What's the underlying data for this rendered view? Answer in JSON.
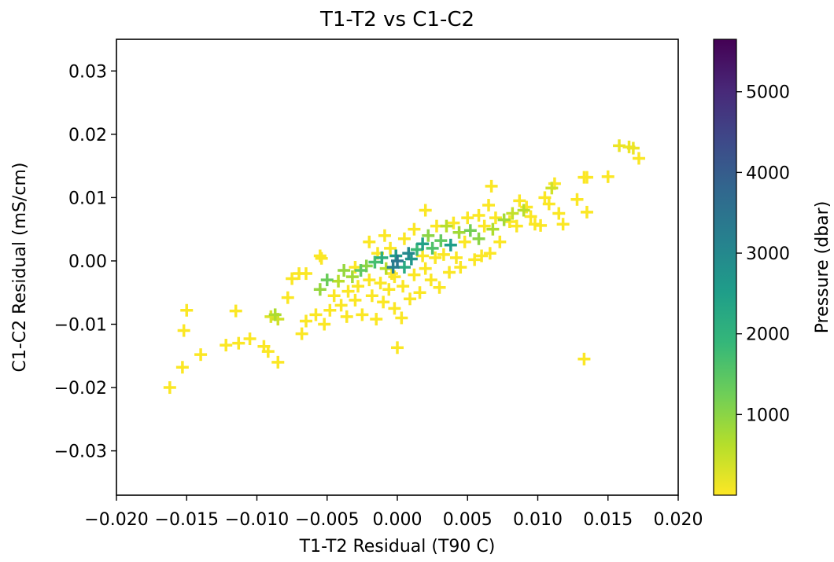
{
  "chart_data": {
    "type": "scatter",
    "title": "T1-T2 vs C1-C2",
    "xlabel": "T1-T2 Residual (T90 C)",
    "ylabel": "C1-C2 Residual (mS/cm)",
    "xlim": [
      -0.02,
      0.02
    ],
    "ylim": [
      -0.037,
      0.035
    ],
    "x_ticks": [
      -0.02,
      -0.015,
      -0.01,
      -0.005,
      0.0,
      0.005,
      0.01,
      0.015,
      0.02
    ],
    "x_tick_labels": [
      "−0.020",
      "−0.015",
      "−0.010",
      "−0.005",
      "0.000",
      "0.005",
      "0.010",
      "0.015",
      "0.020"
    ],
    "y_ticks": [
      0.03,
      0.02,
      0.01,
      0.0,
      -0.01,
      -0.02,
      -0.03
    ],
    "y_tick_labels": [
      "0.03",
      "0.02",
      "0.01",
      "0.00",
      "−0.01",
      "−0.02",
      "−0.03"
    ],
    "marker": "plus",
    "grid": false,
    "colorbar": {
      "label": "Pressure (dbar)",
      "colormap": "viridis",
      "range": [
        0,
        5650
      ],
      "reversed": true,
      "ticks": [
        1000,
        2000,
        3000,
        4000,
        5000
      ],
      "tick_labels": [
        "1000",
        "2000",
        "3000",
        "4000",
        "5000"
      ],
      "colors": [
        "#fde725",
        "#b5de2b",
        "#6ece58",
        "#35b779",
        "#1f9e89",
        "#26828e",
        "#31688e",
        "#3e4989",
        "#482878",
        "#440154"
      ]
    },
    "points": [
      {
        "x": -0.0162,
        "y": -0.02,
        "p": 20
      },
      {
        "x": -0.0153,
        "y": -0.0168,
        "p": 20
      },
      {
        "x": -0.0152,
        "y": -0.011,
        "p": 20
      },
      {
        "x": -0.015,
        "y": -0.0078,
        "p": 20
      },
      {
        "x": -0.014,
        "y": -0.0148,
        "p": 20
      },
      {
        "x": -0.0122,
        "y": -0.0133,
        "p": 20
      },
      {
        "x": -0.0113,
        "y": -0.013,
        "p": 20
      },
      {
        "x": -0.0105,
        "y": -0.0123,
        "p": 20
      },
      {
        "x": -0.0115,
        "y": -0.0079,
        "p": 20
      },
      {
        "x": -0.0095,
        "y": -0.0135,
        "p": 20
      },
      {
        "x": -0.0092,
        "y": -0.0143,
        "p": 20
      },
      {
        "x": -0.0085,
        "y": -0.016,
        "p": 20
      },
      {
        "x": -0.009,
        "y": -0.0088,
        "p": 300
      },
      {
        "x": -0.0087,
        "y": -0.0085,
        "p": 700
      },
      {
        "x": -0.0085,
        "y": -0.0092,
        "p": 400
      },
      {
        "x": -0.0078,
        "y": -0.0058,
        "p": 20
      },
      {
        "x": -0.0075,
        "y": -0.0028,
        "p": 20
      },
      {
        "x": -0.007,
        "y": -0.002,
        "p": 20
      },
      {
        "x": -0.0068,
        "y": -0.0115,
        "p": 20
      },
      {
        "x": -0.0065,
        "y": -0.0095,
        "p": 20
      },
      {
        "x": -0.0065,
        "y": -0.002,
        "p": 20
      },
      {
        "x": -0.0058,
        "y": -0.0085,
        "p": 20
      },
      {
        "x": -0.0055,
        "y": -0.0045,
        "p": 900
      },
      {
        "x": -0.0052,
        "y": -0.01,
        "p": 20
      },
      {
        "x": -0.0055,
        "y": 0.0008,
        "p": 20
      },
      {
        "x": -0.0054,
        "y": 0.0004,
        "p": 20
      },
      {
        "x": -0.005,
        "y": -0.003,
        "p": 1300
      },
      {
        "x": -0.0048,
        "y": -0.0078,
        "p": 20
      },
      {
        "x": -0.0045,
        "y": -0.0055,
        "p": 20
      },
      {
        "x": -0.0042,
        "y": -0.0032,
        "p": 600
      },
      {
        "x": -0.004,
        "y": -0.007,
        "p": 20
      },
      {
        "x": -0.0038,
        "y": -0.0015,
        "p": 900
      },
      {
        "x": -0.0036,
        "y": -0.0088,
        "p": 20
      },
      {
        "x": -0.0035,
        "y": -0.0048,
        "p": 20
      },
      {
        "x": -0.0032,
        "y": -0.0025,
        "p": 800
      },
      {
        "x": -0.003,
        "y": -0.0062,
        "p": 20
      },
      {
        "x": -0.003,
        "y": -0.001,
        "p": 20
      },
      {
        "x": -0.0028,
        "y": -0.004,
        "p": 20
      },
      {
        "x": -0.0026,
        "y": -0.0015,
        "p": 1400
      },
      {
        "x": -0.0025,
        "y": -0.0085,
        "p": 20
      },
      {
        "x": -0.0022,
        "y": -0.0008,
        "p": 1000
      },
      {
        "x": -0.002,
        "y": -0.003,
        "p": 20
      },
      {
        "x": -0.002,
        "y": 0.003,
        "p": 20
      },
      {
        "x": -0.0018,
        "y": -0.0055,
        "p": 20
      },
      {
        "x": -0.0016,
        "y": -0.0002,
        "p": 1700
      },
      {
        "x": -0.0015,
        "y": -0.0092,
        "p": 20
      },
      {
        "x": -0.0014,
        "y": 0.0012,
        "p": 20
      },
      {
        "x": -0.0012,
        "y": -0.0035,
        "p": 20
      },
      {
        "x": -0.0011,
        "y": 0.0005,
        "p": 2100
      },
      {
        "x": -0.001,
        "y": -0.0065,
        "p": 20
      },
      {
        "x": -0.0009,
        "y": 0.004,
        "p": 20
      },
      {
        "x": -0.0008,
        "y": -0.0012,
        "p": 600
      },
      {
        "x": -0.0006,
        "y": -0.0045,
        "p": 20
      },
      {
        "x": -0.0005,
        "y": 0.002,
        "p": 20
      },
      {
        "x": -0.0004,
        "y": -0.002,
        "p": 20
      },
      {
        "x": -0.0003,
        "y": -0.001,
        "p": 3200
      },
      {
        "x": -0.0002,
        "y": -0.0075,
        "p": 20
      },
      {
        "x": -0.0002,
        "y": -0.0025,
        "p": 20
      },
      {
        "x": -0.0001,
        "y": 0.0008,
        "p": 2600
      },
      {
        "x": 0.0,
        "y": -0.0137,
        "p": 20
      },
      {
        "x": 0.0,
        "y": 0.0,
        "p": 3400
      },
      {
        "x": 0.0003,
        "y": -0.009,
        "p": 20
      },
      {
        "x": 0.0004,
        "y": -0.004,
        "p": 20
      },
      {
        "x": 0.0005,
        "y": 0.0035,
        "p": 20
      },
      {
        "x": 0.0005,
        "y": -0.001,
        "p": 2200
      },
      {
        "x": 0.0008,
        "y": 0.0012,
        "p": 3000
      },
      {
        "x": 0.0009,
        "y": -0.006,
        "p": 20
      },
      {
        "x": 0.001,
        "y": 0.0003,
        "p": 2700
      },
      {
        "x": 0.0012,
        "y": -0.0022,
        "p": 20
      },
      {
        "x": 0.0012,
        "y": 0.005,
        "p": 20
      },
      {
        "x": 0.0014,
        "y": 0.0018,
        "p": 1800
      },
      {
        "x": 0.0016,
        "y": -0.005,
        "p": 20
      },
      {
        "x": 0.0018,
        "y": 0.0008,
        "p": 20
      },
      {
        "x": 0.0018,
        "y": 0.0027,
        "p": 2400
      },
      {
        "x": 0.002,
        "y": -0.0012,
        "p": 20
      },
      {
        "x": 0.002,
        "y": 0.008,
        "p": 20
      },
      {
        "x": 0.0022,
        "y": 0.004,
        "p": 1000
      },
      {
        "x": 0.0024,
        "y": -0.003,
        "p": 20
      },
      {
        "x": 0.0025,
        "y": 0.002,
        "p": 1600
      },
      {
        "x": 0.0027,
        "y": 0.0005,
        "p": 20
      },
      {
        "x": 0.0028,
        "y": 0.0055,
        "p": 20
      },
      {
        "x": 0.003,
        "y": -0.0042,
        "p": 20
      },
      {
        "x": 0.0031,
        "y": 0.0032,
        "p": 1400
      },
      {
        "x": 0.0033,
        "y": 0.001,
        "p": 20
      },
      {
        "x": 0.0035,
        "y": 0.0055,
        "p": 600
      },
      {
        "x": 0.0037,
        "y": -0.0018,
        "p": 20
      },
      {
        "x": 0.0038,
        "y": 0.0025,
        "p": 2500
      },
      {
        "x": 0.004,
        "y": 0.006,
        "p": 20
      },
      {
        "x": 0.0042,
        "y": 0.0005,
        "p": 20
      },
      {
        "x": 0.0044,
        "y": 0.0045,
        "p": 800
      },
      {
        "x": 0.0045,
        "y": -0.001,
        "p": 20
      },
      {
        "x": 0.0048,
        "y": 0.003,
        "p": 20
      },
      {
        "x": 0.005,
        "y": 0.0068,
        "p": 20
      },
      {
        "x": 0.0052,
        "y": 0.0048,
        "p": 1200
      },
      {
        "x": 0.0055,
        "y": 0.0002,
        "p": 20
      },
      {
        "x": 0.0058,
        "y": 0.0035,
        "p": 1000
      },
      {
        "x": 0.0058,
        "y": 0.0072,
        "p": 20
      },
      {
        "x": 0.006,
        "y": 0.0008,
        "p": 20
      },
      {
        "x": 0.0062,
        "y": 0.0055,
        "p": 20
      },
      {
        "x": 0.0065,
        "y": 0.0088,
        "p": 20
      },
      {
        "x": 0.0066,
        "y": 0.0012,
        "p": 20
      },
      {
        "x": 0.0067,
        "y": 0.0118,
        "p": 20
      },
      {
        "x": 0.0068,
        "y": 0.005,
        "p": 700
      },
      {
        "x": 0.007,
        "y": 0.0068,
        "p": 20
      },
      {
        "x": 0.0073,
        "y": 0.003,
        "p": 20
      },
      {
        "x": 0.0076,
        "y": 0.0065,
        "p": 800
      },
      {
        "x": 0.008,
        "y": 0.0062,
        "p": 20
      },
      {
        "x": 0.0082,
        "y": 0.0075,
        "p": 500
      },
      {
        "x": 0.0085,
        "y": 0.0055,
        "p": 20
      },
      {
        "x": 0.0087,
        "y": 0.0095,
        "p": 20
      },
      {
        "x": 0.009,
        "y": 0.008,
        "p": 600
      },
      {
        "x": 0.0092,
        "y": 0.0085,
        "p": 20
      },
      {
        "x": 0.0095,
        "y": 0.007,
        "p": 20
      },
      {
        "x": 0.0098,
        "y": 0.0058,
        "p": 20
      },
      {
        "x": 0.0102,
        "y": 0.0056,
        "p": 20
      },
      {
        "x": 0.0105,
        "y": 0.01,
        "p": 20
      },
      {
        "x": 0.0108,
        "y": 0.009,
        "p": 20
      },
      {
        "x": 0.011,
        "y": 0.0115,
        "p": 400
      },
      {
        "x": 0.0112,
        "y": 0.0122,
        "p": 20
      },
      {
        "x": 0.0115,
        "y": 0.0075,
        "p": 20
      },
      {
        "x": 0.0118,
        "y": 0.0058,
        "p": 20
      },
      {
        "x": 0.0128,
        "y": 0.0097,
        "p": 20
      },
      {
        "x": 0.0133,
        "y": 0.0132,
        "p": 20
      },
      {
        "x": 0.0135,
        "y": 0.0077,
        "p": 20
      },
      {
        "x": 0.0133,
        "y": -0.0155,
        "p": 20
      },
      {
        "x": 0.015,
        "y": 0.0133,
        "p": 20
      },
      {
        "x": 0.0158,
        "y": 0.0182,
        "p": 150
      },
      {
        "x": 0.0165,
        "y": 0.018,
        "p": 150
      },
      {
        "x": 0.0168,
        "y": 0.0178,
        "p": 150
      },
      {
        "x": 0.0172,
        "y": 0.0162,
        "p": 20
      },
      {
        "x": 0.0135,
        "y": 0.0132,
        "p": 20
      }
    ]
  }
}
